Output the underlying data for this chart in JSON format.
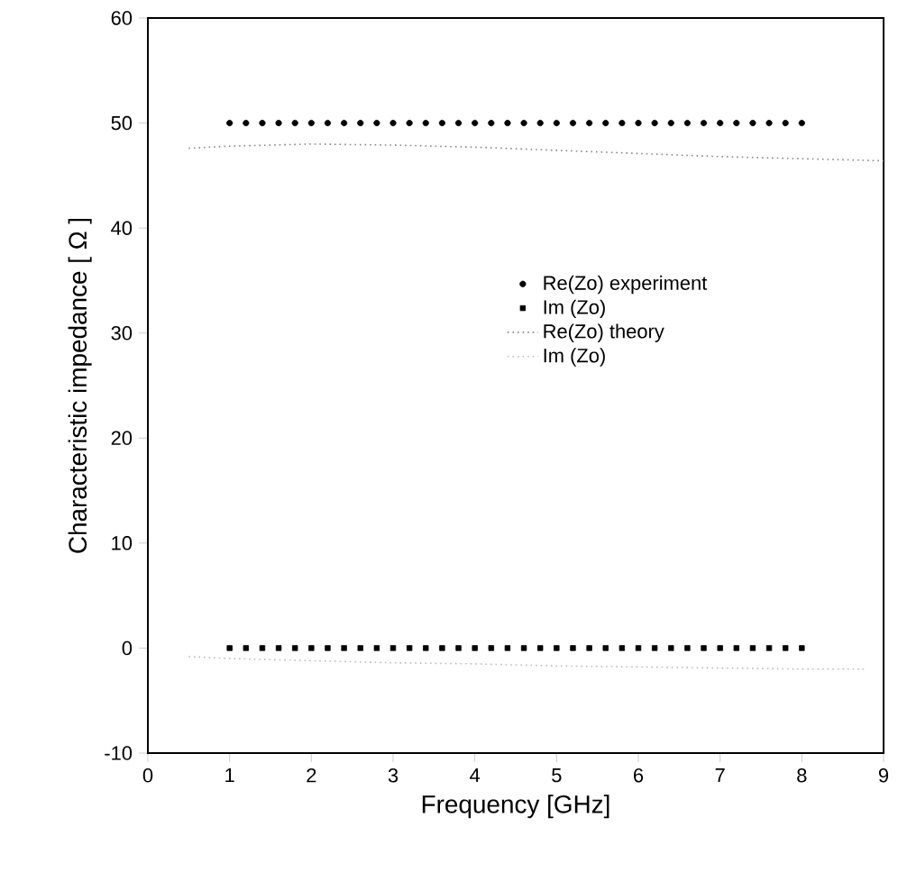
{
  "chart_data": {
    "type": "scatter",
    "xlabel": "Frequency [GHz]",
    "ylabel": "Characteristic impedance [ Ω ]",
    "xlim": [
      0,
      9
    ],
    "ylim": [
      -10,
      60
    ],
    "xticks": [
      0,
      1,
      2,
      3,
      4,
      5,
      6,
      7,
      8,
      9
    ],
    "yticks": [
      -10,
      0,
      10,
      20,
      30,
      40,
      50,
      60
    ],
    "grid": false,
    "legend": "right",
    "series": [
      {
        "name": "Re(Zo)   experiment",
        "marker": "circle",
        "color": "#000000",
        "x": [
          1.0,
          1.2,
          1.4,
          1.6,
          1.8,
          2.0,
          2.2,
          2.4,
          2.6,
          2.8,
          3.0,
          3.2,
          3.4,
          3.6,
          3.8,
          4.0,
          4.2,
          4.4,
          4.6,
          4.8,
          5.0,
          5.2,
          5.4,
          5.6,
          5.8,
          6.0,
          6.2,
          6.4,
          6.6,
          6.8,
          7.0,
          7.2,
          7.4,
          7.6,
          7.8,
          8.0
        ],
        "values": [
          50,
          50,
          50,
          50,
          50,
          50,
          50,
          50,
          50,
          50,
          50,
          50,
          50,
          50,
          50,
          50,
          50,
          50,
          50,
          50,
          50,
          50,
          50,
          50,
          50,
          50,
          50,
          50,
          50,
          50,
          50,
          50,
          50,
          50,
          50,
          50
        ]
      },
      {
        "name": "Im (Zo)",
        "marker": "square",
        "color": "#000000",
        "x": [
          1.0,
          1.2,
          1.4,
          1.6,
          1.8,
          2.0,
          2.2,
          2.4,
          2.6,
          2.8,
          3.0,
          3.2,
          3.4,
          3.6,
          3.8,
          4.0,
          4.2,
          4.4,
          4.6,
          4.8,
          5.0,
          5.2,
          5.4,
          5.6,
          5.8,
          6.0,
          6.2,
          6.4,
          6.6,
          6.8,
          7.0,
          7.2,
          7.4,
          7.6,
          7.8,
          8.0
        ],
        "values": [
          0,
          0,
          0,
          0,
          0,
          0,
          0,
          0,
          0,
          0,
          0,
          0,
          0,
          0,
          0,
          0,
          0,
          0,
          0,
          0,
          0,
          0,
          0,
          0,
          0,
          0,
          0,
          0,
          0,
          0,
          0,
          0,
          0,
          0,
          0,
          0
        ]
      },
      {
        "name": "Re(Zo)   theory",
        "type": "line",
        "line_style": "dotted",
        "color": "#888888",
        "x": [
          0.5,
          1,
          2,
          3,
          4,
          5,
          6,
          7,
          8,
          9
        ],
        "values": [
          47.6,
          47.8,
          48.0,
          47.9,
          47.7,
          47.4,
          47.1,
          46.8,
          46.6,
          46.4
        ]
      },
      {
        "name": "Im (Zo)",
        "type": "line",
        "line_style": "dotted",
        "color": "#bbbbbb",
        "x": [
          0.5,
          1,
          2,
          3,
          4,
          5,
          6,
          7,
          8,
          8.8
        ],
        "values": [
          -0.8,
          -1.0,
          -1.2,
          -1.4,
          -1.5,
          -1.7,
          -1.8,
          -1.9,
          -2.0,
          -2.0
        ]
      }
    ]
  }
}
